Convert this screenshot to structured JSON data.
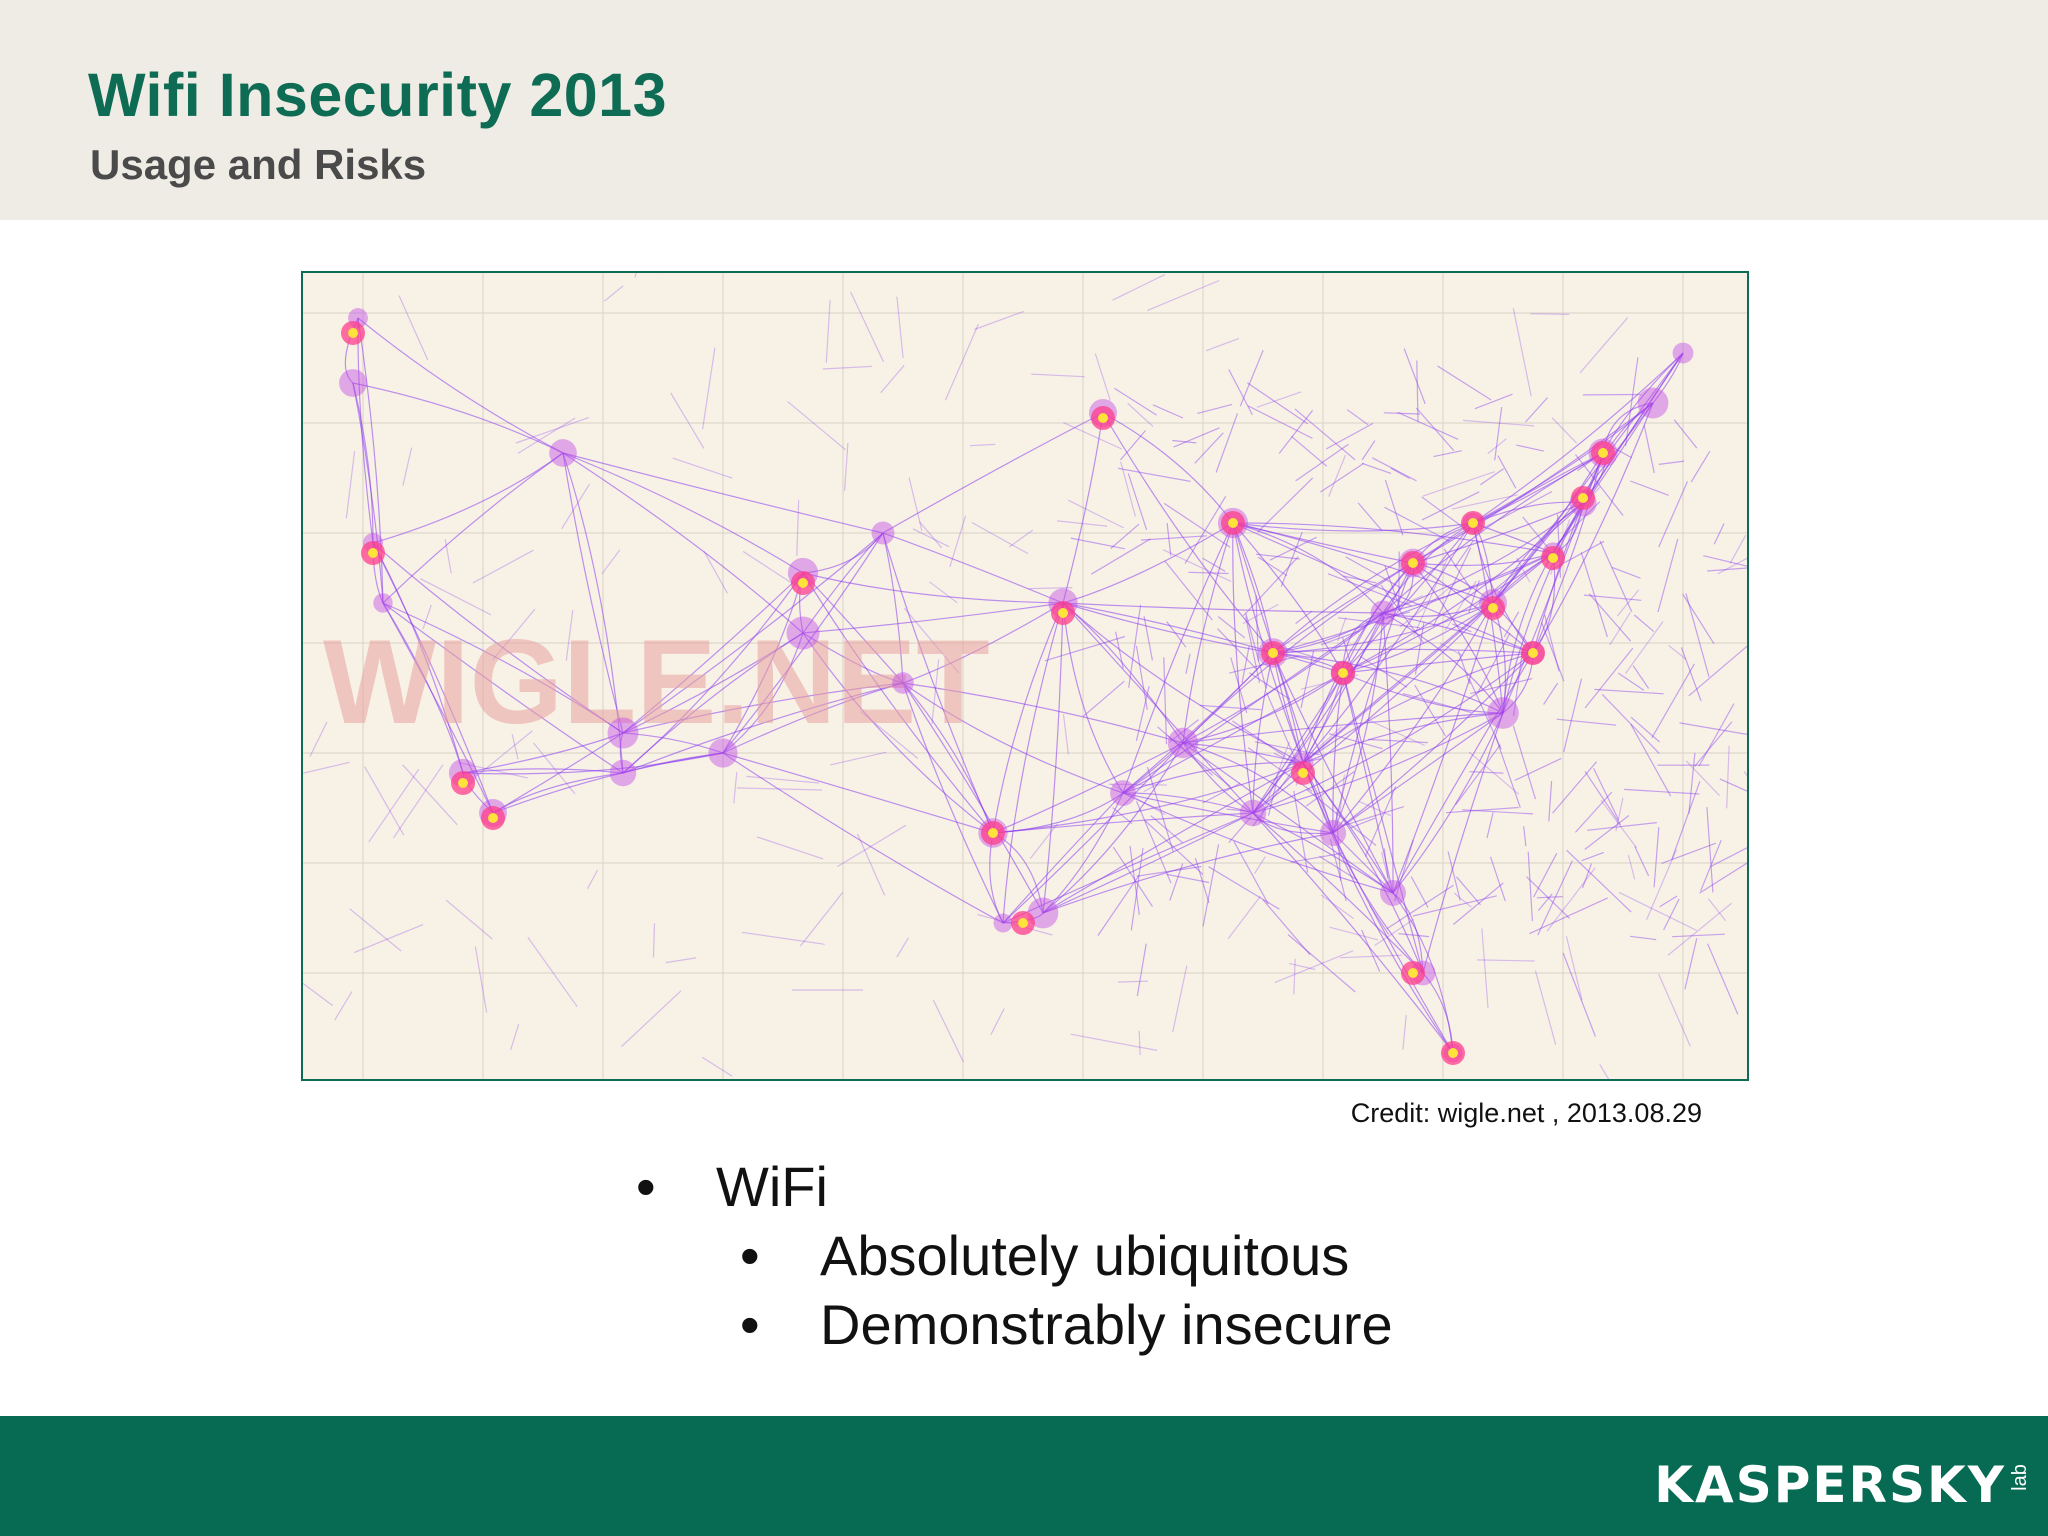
{
  "slide": {
    "title": "Wifi Insecurity 2013",
    "subtitle": "Usage and Risks"
  },
  "map": {
    "watermark": "WIGLE.NET",
    "credit": "Credit: wigle.net , 2013.08.29",
    "colors": {
      "background": "#f8f2e6",
      "roads": "#8a3cf0",
      "hotspot": "#ff3d8b",
      "hotspot_core": "#ffe23a"
    }
  },
  "bullets": [
    {
      "level": 1,
      "marker": "•",
      "text": "WiFi"
    },
    {
      "level": 2,
      "marker": "•",
      "text": "Absolutely ubiquitous"
    },
    {
      "level": 2,
      "marker": "•",
      "text": "Demonstrably insecure"
    }
  ],
  "footer": {
    "logo": "KASPERSKY",
    "logo_suffix": "lab",
    "colors": {
      "background": "#076b54",
      "title": "#0e6b54"
    }
  }
}
